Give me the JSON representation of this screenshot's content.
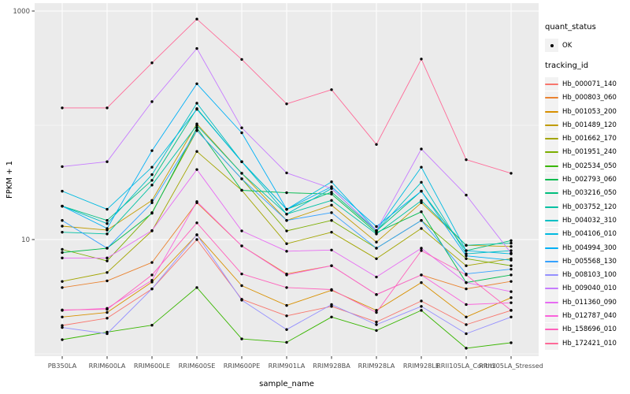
{
  "colors": {
    "panel_bg": "#EBEBEB",
    "grid": "#FFFFFF",
    "axis_text": "#4D4D4D",
    "axis_title": "#000000",
    "tick_mark": "#333333",
    "legend_key_bg": "#F2F2F2",
    "point": "#000000"
  },
  "legend": {
    "quant_status": {
      "title": "quant_status",
      "items": [
        {
          "label": "OK"
        }
      ]
    },
    "tracking_id": {
      "title": "tracking_id"
    }
  },
  "chart_data": {
    "type": "line",
    "title": "",
    "xlabel": "sample_name",
    "ylabel": "FPKM + 1",
    "y_scale": "log10",
    "y_ticks": [
      10,
      1000
    ],
    "y_tick_labels": [
      "10",
      "1000"
    ],
    "y_minor_grid": [
      1,
      100
    ],
    "ylim_approx": [
      0.95,
      1170
    ],
    "grid": true,
    "legend_position": "right",
    "point_shape": "filled-circle",
    "categories": [
      "PB350LA",
      "RRIM600LA",
      "RRIM600LE",
      "RRIM600SE",
      "RRIM600PE",
      "RRIM901LA",
      "RRIM928BA",
      "RRIM928LA",
      "RRIM928LE",
      "RRII105LA_Control",
      "RRII105LA_Stressed"
    ],
    "series": [
      {
        "name": "Hb_000071_140",
        "color": "#F8766D",
        "values": [
          1.77,
          2.05,
          3.7,
          10.0,
          3.0,
          2.15,
          2.6,
          1.9,
          2.9,
          1.8,
          2.4
        ]
      },
      {
        "name": "Hb_000803_060",
        "color": "#EA8331",
        "values": [
          3.8,
          4.35,
          6.3,
          21.0,
          8.8,
          5.0,
          5.9,
          3.3,
          4.9,
          3.7,
          4.3
        ]
      },
      {
        "name": "Hb_001053_200",
        "color": "#D89000",
        "values": [
          2.1,
          2.3,
          4.25,
          11.0,
          3.95,
          2.65,
          3.6,
          2.4,
          4.2,
          2.1,
          3.1
        ]
      },
      {
        "name": "Hb_001489_120",
        "color": "#C09B00",
        "values": [
          13.1,
          12.1,
          22.0,
          103.0,
          38.0,
          14.7,
          20.0,
          9.5,
          21.0,
          8.9,
          8.7
        ]
      },
      {
        "name": "Hb_001662_170",
        "color": "#A3A500",
        "values": [
          4.3,
          5.15,
          11.9,
          59.0,
          27.0,
          9.2,
          11.6,
          6.8,
          12.5,
          5.9,
          6.8
        ]
      },
      {
        "name": "Hb_001951_240",
        "color": "#7CAE00",
        "values": [
          8.2,
          6.5,
          17.2,
          90.0,
          34.0,
          11.9,
          14.7,
          8.4,
          14.7,
          6.8,
          5.9
        ]
      },
      {
        "name": "Hb_002534_050",
        "color": "#39B600",
        "values": [
          1.33,
          1.55,
          1.78,
          3.8,
          1.35,
          1.26,
          2.1,
          1.6,
          2.4,
          1.12,
          1.25
        ]
      },
      {
        "name": "Hb_002793_060",
        "color": "#00BB4E",
        "values": [
          7.7,
          8.4,
          17.0,
          95.0,
          27.0,
          25.7,
          25.0,
          11.5,
          17.5,
          4.2,
          4.9
        ]
      },
      {
        "name": "Hb_003216_050",
        "color": "#00BF7D",
        "values": [
          19.6,
          14.7,
          33.0,
          140.0,
          48.0,
          18.4,
          26.0,
          11.9,
          26.5,
          8.0,
          9.8
        ]
      },
      {
        "name": "Hb_003752_120",
        "color": "#00C1A3",
        "values": [
          11.6,
          11.2,
          30.0,
          100.0,
          38.0,
          16.7,
          22.0,
          11.2,
          21.9,
          8.9,
          9.3
        ]
      },
      {
        "name": "Hb_004032_310",
        "color": "#00BFC4",
        "values": [
          19.6,
          13.8,
          37.0,
          156.0,
          48.0,
          16.7,
          28.0,
          11.9,
          31.7,
          7.5,
          8.0
        ]
      },
      {
        "name": "Hb_004106_010",
        "color": "#00BAE0",
        "values": [
          26.5,
          18.4,
          43.0,
          138.0,
          48.0,
          18.4,
          32.0,
          12.0,
          43.0,
          8.0,
          7.5
        ]
      },
      {
        "name": "Hb_004994_300",
        "color": "#00B0F6",
        "values": [
          19.6,
          12.5,
          60.0,
          231.0,
          86.0,
          18.4,
          29.0,
          13.0,
          26.5,
          7.2,
          6.6
        ]
      },
      {
        "name": "Hb_005568_130",
        "color": "#35A2FF",
        "values": [
          14.7,
          8.4,
          21.0,
          90.0,
          34.0,
          14.7,
          17.2,
          8.4,
          14.7,
          5.0,
          5.5
        ]
      },
      {
        "name": "Hb_008103_100",
        "color": "#9590FF",
        "values": [
          1.7,
          1.5,
          3.7,
          11.0,
          2.95,
          1.63,
          2.7,
          1.8,
          2.6,
          1.5,
          2.1
        ]
      },
      {
        "name": "Hb_009040_010",
        "color": "#C77CFF",
        "values": [
          43.5,
          48.0,
          161.0,
          470.0,
          95.0,
          38.3,
          28.0,
          12.0,
          62.0,
          24.5,
          7.6
        ]
      },
      {
        "name": "Hb_011360_090",
        "color": "#E76BF3",
        "values": [
          6.9,
          6.9,
          12.0,
          41.0,
          11.9,
          7.9,
          8.1,
          4.7,
          8.4,
          4.2,
          3.5
        ]
      },
      {
        "name": "Hb_012787_040",
        "color": "#FA62DB",
        "values": [
          2.4,
          2.5,
          4.4,
          21.5,
          8.8,
          4.9,
          5.9,
          3.3,
          4.9,
          2.7,
          2.8
        ]
      },
      {
        "name": "Hb_158696_010",
        "color": "#FF62BC",
        "values": [
          2.42,
          2.45,
          4.9,
          14.0,
          5.0,
          3.8,
          3.65,
          2.3,
          8.0,
          4.9,
          2.4
        ]
      },
      {
        "name": "Hb_172421_010",
        "color": "#FF6A98",
        "values": [
          142.0,
          142.0,
          352.0,
          850.0,
          377.0,
          154.0,
          205.0,
          68.0,
          380.0,
          50.0,
          38.0
        ]
      }
    ]
  }
}
